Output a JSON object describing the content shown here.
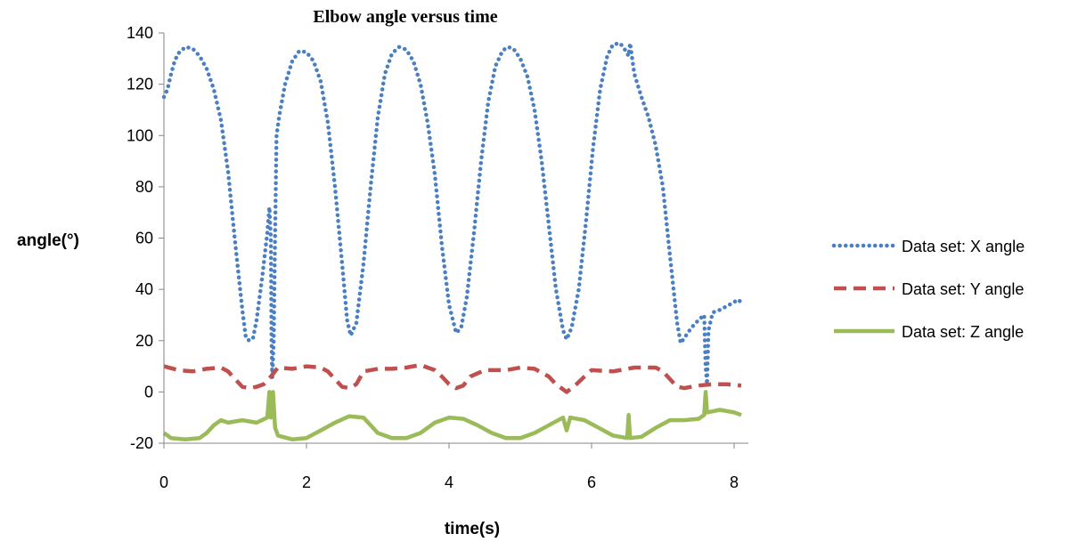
{
  "chart_data": {
    "type": "line",
    "title": "Elbow angle versus time",
    "xlabel": "time(s)",
    "ylabel": "angle(°)",
    "xlim": [
      0,
      8.2
    ],
    "ylim": [
      -20,
      140
    ],
    "x_ticks": [
      0,
      2,
      4,
      6,
      8
    ],
    "y_ticks": [
      -20,
      0,
      20,
      40,
      60,
      80,
      100,
      120,
      140
    ],
    "grid": false,
    "legend_position": "right",
    "series": [
      {
        "name": "Data set: X angle",
        "color": "#4a7fc1",
        "style": "dotted",
        "points": [
          [
            0.0,
            115
          ],
          [
            0.05,
            118
          ],
          [
            0.1,
            124
          ],
          [
            0.15,
            129
          ],
          [
            0.2,
            132
          ],
          [
            0.3,
            134.5
          ],
          [
            0.4,
            134
          ],
          [
            0.5,
            131
          ],
          [
            0.6,
            126
          ],
          [
            0.7,
            118
          ],
          [
            0.8,
            106
          ],
          [
            0.9,
            86
          ],
          [
            1.0,
            58
          ],
          [
            1.1,
            32
          ],
          [
            1.15,
            21
          ],
          [
            1.2,
            20
          ],
          [
            1.25,
            21
          ],
          [
            1.3,
            28
          ],
          [
            1.38,
            45
          ],
          [
            1.45,
            62
          ],
          [
            1.48,
            72
          ],
          [
            1.5,
            60
          ],
          [
            1.51,
            20
          ],
          [
            1.52,
            5
          ],
          [
            1.54,
            20
          ],
          [
            1.56,
            62
          ],
          [
            1.58,
            100
          ],
          [
            1.62,
            108
          ],
          [
            1.7,
            120
          ],
          [
            1.8,
            129
          ],
          [
            1.9,
            133
          ],
          [
            2.0,
            132.5
          ],
          [
            2.1,
            129
          ],
          [
            2.2,
            121
          ],
          [
            2.3,
            105
          ],
          [
            2.4,
            80
          ],
          [
            2.5,
            50
          ],
          [
            2.57,
            28
          ],
          [
            2.62,
            22
          ],
          [
            2.7,
            27
          ],
          [
            2.8,
            50
          ],
          [
            2.9,
            80
          ],
          [
            3.0,
            107
          ],
          [
            3.1,
            124
          ],
          [
            3.2,
            132
          ],
          [
            3.3,
            134.5
          ],
          [
            3.4,
            133.5
          ],
          [
            3.5,
            129
          ],
          [
            3.6,
            120
          ],
          [
            3.7,
            105
          ],
          [
            3.8,
            85
          ],
          [
            3.9,
            57
          ],
          [
            4.0,
            34
          ],
          [
            4.1,
            23
          ],
          [
            4.17,
            25
          ],
          [
            4.25,
            37
          ],
          [
            4.35,
            62
          ],
          [
            4.45,
            90
          ],
          [
            4.55,
            113
          ],
          [
            4.65,
            127
          ],
          [
            4.75,
            133
          ],
          [
            4.82,
            134.5
          ],
          [
            4.9,
            134
          ],
          [
            5.0,
            130
          ],
          [
            5.1,
            123
          ],
          [
            5.2,
            110
          ],
          [
            5.3,
            90
          ],
          [
            5.4,
            65
          ],
          [
            5.5,
            40
          ],
          [
            5.6,
            24
          ],
          [
            5.65,
            20.5
          ],
          [
            5.72,
            25
          ],
          [
            5.82,
            40
          ],
          [
            5.92,
            66
          ],
          [
            6.02,
            95
          ],
          [
            6.12,
            118
          ],
          [
            6.22,
            131
          ],
          [
            6.3,
            135.5
          ],
          [
            6.4,
            136
          ],
          [
            6.48,
            133
          ],
          [
            6.52,
            131
          ],
          [
            6.54,
            136
          ],
          [
            6.6,
            124
          ],
          [
            6.7,
            115
          ],
          [
            6.8,
            107
          ],
          [
            6.9,
            96
          ],
          [
            7.0,
            80
          ],
          [
            7.1,
            53
          ],
          [
            7.2,
            27
          ],
          [
            7.25,
            19
          ],
          [
            7.3,
            21
          ],
          [
            7.4,
            25
          ],
          [
            7.5,
            28
          ],
          [
            7.58,
            30
          ],
          [
            7.6,
            10
          ],
          [
            7.62,
            3
          ],
          [
            7.64,
            24
          ],
          [
            7.7,
            31
          ],
          [
            7.8,
            32
          ],
          [
            7.9,
            33.5
          ],
          [
            8.0,
            35
          ],
          [
            8.05,
            36
          ],
          [
            8.1,
            35
          ]
        ]
      },
      {
        "name": "Data set: Y angle",
        "color": "#c0504d",
        "style": "dashed",
        "points": [
          [
            0.0,
            10
          ],
          [
            0.2,
            8.5
          ],
          [
            0.4,
            8
          ],
          [
            0.6,
            9
          ],
          [
            0.8,
            9.5
          ],
          [
            0.9,
            8
          ],
          [
            1.0,
            5
          ],
          [
            1.1,
            2
          ],
          [
            1.2,
            1.5
          ],
          [
            1.3,
            2
          ],
          [
            1.4,
            3
          ],
          [
            1.5,
            6
          ],
          [
            1.6,
            9.5
          ],
          [
            1.8,
            9
          ],
          [
            2.0,
            10
          ],
          [
            2.2,
            9.5
          ],
          [
            2.3,
            8
          ],
          [
            2.4,
            5
          ],
          [
            2.5,
            2
          ],
          [
            2.6,
            1.5
          ],
          [
            2.7,
            3
          ],
          [
            2.8,
            8
          ],
          [
            3.0,
            9
          ],
          [
            3.2,
            9
          ],
          [
            3.4,
            9.5
          ],
          [
            3.6,
            10.5
          ],
          [
            3.8,
            8.5
          ],
          [
            3.9,
            6
          ],
          [
            4.0,
            3
          ],
          [
            4.1,
            1.5
          ],
          [
            4.2,
            2.5
          ],
          [
            4.3,
            6
          ],
          [
            4.5,
            8.5
          ],
          [
            4.8,
            8.5
          ],
          [
            5.0,
            9.5
          ],
          [
            5.2,
            9
          ],
          [
            5.4,
            6
          ],
          [
            5.5,
            3
          ],
          [
            5.6,
            1
          ],
          [
            5.65,
            0
          ],
          [
            5.75,
            2
          ],
          [
            5.9,
            6
          ],
          [
            6.0,
            8.5
          ],
          [
            6.3,
            8
          ],
          [
            6.6,
            9.5
          ],
          [
            6.9,
            9.5
          ],
          [
            7.0,
            8
          ],
          [
            7.1,
            5
          ],
          [
            7.2,
            2
          ],
          [
            7.3,
            1.5
          ],
          [
            7.5,
            2.5
          ],
          [
            7.7,
            3
          ],
          [
            7.9,
            3
          ],
          [
            8.1,
            2.5
          ]
        ]
      },
      {
        "name": "Data set: Z angle",
        "color": "#9bbb59",
        "style": "solid",
        "points": [
          [
            0.0,
            -16
          ],
          [
            0.1,
            -18
          ],
          [
            0.3,
            -18.5
          ],
          [
            0.5,
            -18
          ],
          [
            0.6,
            -16
          ],
          [
            0.7,
            -13
          ],
          [
            0.8,
            -11
          ],
          [
            0.9,
            -12
          ],
          [
            1.1,
            -11
          ],
          [
            1.3,
            -12
          ],
          [
            1.45,
            -10
          ],
          [
            1.48,
            0
          ],
          [
            1.5,
            -10
          ],
          [
            1.53,
            0
          ],
          [
            1.56,
            -14
          ],
          [
            1.6,
            -17
          ],
          [
            1.8,
            -18.5
          ],
          [
            2.0,
            -18
          ],
          [
            2.2,
            -15
          ],
          [
            2.4,
            -12
          ],
          [
            2.6,
            -9.5
          ],
          [
            2.8,
            -10
          ],
          [
            2.9,
            -13
          ],
          [
            3.0,
            -16
          ],
          [
            3.2,
            -18
          ],
          [
            3.4,
            -18
          ],
          [
            3.6,
            -16
          ],
          [
            3.8,
            -12
          ],
          [
            4.0,
            -10
          ],
          [
            4.2,
            -10.5
          ],
          [
            4.4,
            -13
          ],
          [
            4.6,
            -16
          ],
          [
            4.8,
            -18
          ],
          [
            5.0,
            -18
          ],
          [
            5.2,
            -16
          ],
          [
            5.4,
            -13
          ],
          [
            5.6,
            -10
          ],
          [
            5.65,
            -15
          ],
          [
            5.7,
            -10
          ],
          [
            5.9,
            -11
          ],
          [
            6.1,
            -14
          ],
          [
            6.3,
            -17
          ],
          [
            6.5,
            -18
          ],
          [
            6.52,
            -9
          ],
          [
            6.54,
            -18
          ],
          [
            6.7,
            -17.5
          ],
          [
            6.9,
            -14
          ],
          [
            7.1,
            -11
          ],
          [
            7.3,
            -11
          ],
          [
            7.5,
            -10.5
          ],
          [
            7.58,
            -9
          ],
          [
            7.6,
            0
          ],
          [
            7.62,
            -8
          ],
          [
            7.8,
            -7
          ],
          [
            8.0,
            -8
          ],
          [
            8.1,
            -9
          ]
        ]
      }
    ]
  }
}
